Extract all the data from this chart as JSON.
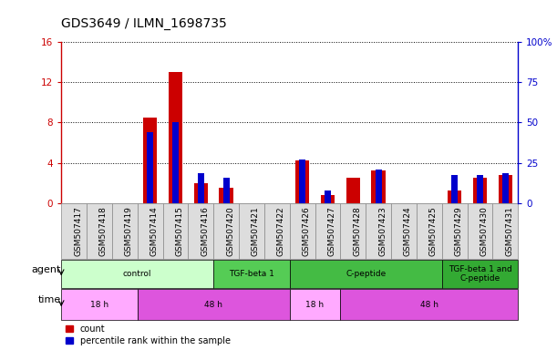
{
  "title": "GDS3649 / ILMN_1698735",
  "samples": [
    "GSM507417",
    "GSM507418",
    "GSM507419",
    "GSM507414",
    "GSM507415",
    "GSM507416",
    "GSM507420",
    "GSM507421",
    "GSM507422",
    "GSM507426",
    "GSM507427",
    "GSM507428",
    "GSM507423",
    "GSM507424",
    "GSM507425",
    "GSM507429",
    "GSM507430",
    "GSM507431"
  ],
  "count_values": [
    0,
    0,
    0,
    8.5,
    13.0,
    2.0,
    1.5,
    0,
    0,
    4.2,
    0.8,
    2.5,
    3.2,
    0,
    0,
    1.2,
    2.5,
    2.8
  ],
  "percentile_values": [
    0,
    0,
    0,
    43.75,
    50.0,
    18.75,
    15.625,
    0,
    0,
    26.875,
    7.5,
    0,
    20.625,
    0,
    0,
    17.5,
    17.5,
    18.75
  ],
  "ylim_left": [
    0,
    16
  ],
  "ylim_right": [
    0,
    100
  ],
  "yticks_left": [
    0,
    4,
    8,
    12,
    16
  ],
  "yticks_right": [
    0,
    25,
    50,
    75,
    100
  ],
  "yticklabels_right": [
    "0",
    "25",
    "50",
    "75",
    "100%"
  ],
  "count_color": "#cc0000",
  "percentile_color": "#0000cc",
  "agent_groups": [
    {
      "label": "control",
      "start": 0,
      "end": 6,
      "color": "#ccffcc"
    },
    {
      "label": "TGF-beta 1",
      "start": 6,
      "end": 9,
      "color": "#55cc55"
    },
    {
      "label": "C-peptide",
      "start": 9,
      "end": 15,
      "color": "#44bb44"
    },
    {
      "label": "TGF-beta 1 and\nC-peptide",
      "start": 15,
      "end": 18,
      "color": "#33aa33"
    }
  ],
  "time_groups": [
    {
      "label": "18 h",
      "start": 0,
      "end": 3,
      "color": "#ffaaff"
    },
    {
      "label": "48 h",
      "start": 3,
      "end": 9,
      "color": "#dd55dd"
    },
    {
      "label": "18 h",
      "start": 9,
      "end": 11,
      "color": "#ffaaff"
    },
    {
      "label": "48 h",
      "start": 11,
      "end": 18,
      "color": "#dd55dd"
    }
  ],
  "legend_items": [
    {
      "label": "count",
      "color": "#cc0000"
    },
    {
      "label": "percentile rank within the sample",
      "color": "#0000cc"
    }
  ],
  "agent_label": "agent",
  "time_label": "time",
  "title_fontsize": 10,
  "tick_fontsize": 6.5,
  "label_fontsize": 8,
  "row_label_fontsize": 8,
  "sample_box_color": "#dddddd",
  "sample_box_edge": "#888888"
}
